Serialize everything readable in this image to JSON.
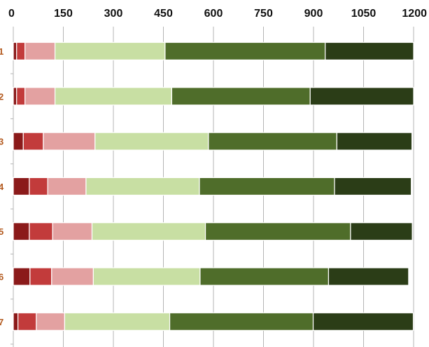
{
  "chart_data": {
    "type": "bar",
    "orientation": "horizontal",
    "stacked": true,
    "title": "",
    "xlabel": "",
    "ylabel": "",
    "xlim": [
      0,
      1200
    ],
    "x_ticks": [
      "0",
      "150",
      "300",
      "450",
      "600",
      "750",
      "900",
      "1050",
      "1200"
    ],
    "x_tick_values": [
      0,
      150,
      300,
      450,
      600,
      750,
      900,
      1050,
      1200
    ],
    "x_axis_position": "top",
    "grid": true,
    "legend": "none",
    "categories": [
      "1",
      "2",
      "3",
      "4",
      "5",
      "6",
      "7"
    ],
    "series": [
      {
        "color": "#8b1a1a",
        "values": [
          10,
          10,
          30,
          48,
          48,
          50,
          14
        ]
      },
      {
        "color": "#c23b3b",
        "values": [
          25,
          25,
          60,
          55,
          70,
          65,
          55
        ]
      },
      {
        "color": "#e3a1a1",
        "values": [
          90,
          90,
          155,
          115,
          118,
          125,
          85
        ]
      },
      {
        "color": "#c8dfa3",
        "values": [
          330,
          350,
          340,
          340,
          340,
          320,
          315
        ]
      },
      {
        "color": "#4f6d2a",
        "values": [
          480,
          415,
          385,
          405,
          435,
          385,
          430
        ]
      },
      {
        "color": "#2b3d17",
        "values": [
          265,
          310,
          225,
          230,
          185,
          240,
          300
        ]
      }
    ]
  }
}
